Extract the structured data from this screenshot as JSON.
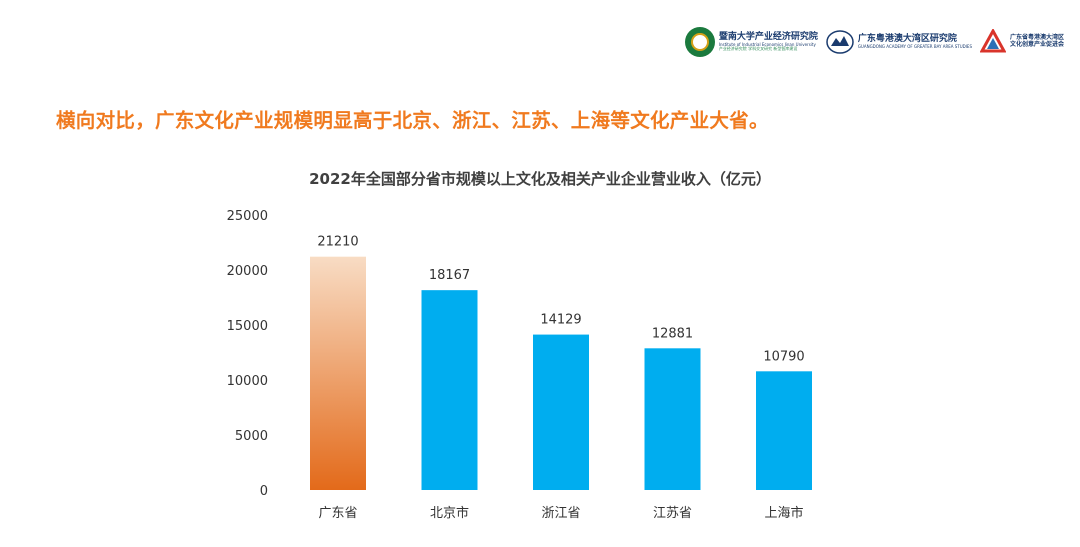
{
  "header": {
    "logos": [
      {
        "name": "暨南大学产业经济研究院",
        "sub": "Institute of Industrial Economics Jinan University",
        "sub2": "产业经济研究院 学科交叉研究 新型智库建设"
      },
      {
        "name": "广东粤港澳大湾区研究院",
        "sub": "GUANGDONG ACADEMY OF GREATER BAY AREA STUDIES"
      },
      {
        "name": "广东省粤港澳大湾区文化创意产业促进会"
      }
    ]
  },
  "headline": "横向对比，广东文化产业规模明显高于北京、浙江、江苏、上海等文化产业大省。",
  "colors": {
    "headline": "#f07a1f",
    "highlight_bar_top": "#f8dcc4",
    "highlight_bar_bottom": "#e36a1a",
    "bar": "#00adef"
  },
  "chart_data": {
    "type": "bar",
    "title": "2022年全国部分省市规模以上文化及相关产业企业营业收入（亿元）",
    "categories": [
      "广东省",
      "北京市",
      "浙江省",
      "江苏省",
      "上海市"
    ],
    "values": [
      21210,
      18167,
      14129,
      12881,
      10790
    ],
    "highlight_index": 0,
    "ylim": [
      0,
      25000
    ],
    "yticks": [
      0,
      5000,
      10000,
      15000,
      20000,
      25000
    ],
    "xlabel": "",
    "ylabel": "",
    "grid": false,
    "data_labels": true
  }
}
